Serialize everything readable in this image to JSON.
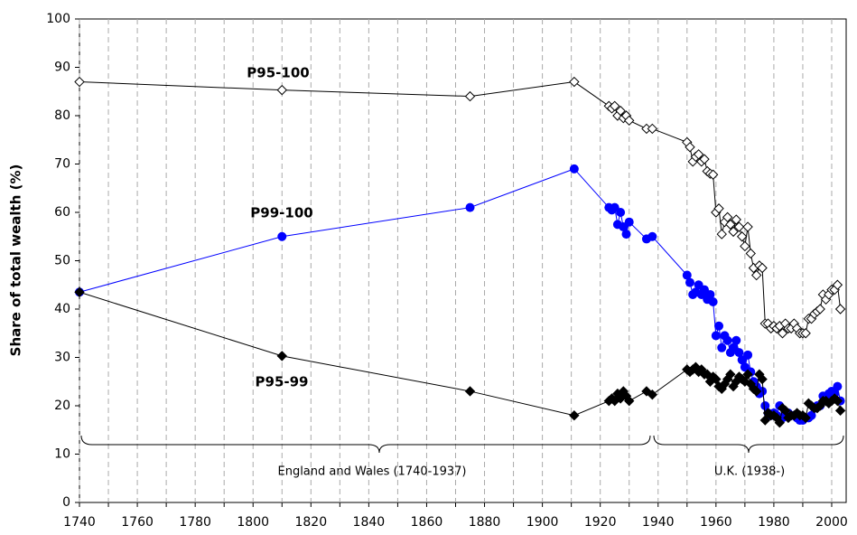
{
  "chart_data": {
    "type": "line",
    "y_label": "Share of total wealth (%)",
    "x": [
      1740,
      1810,
      1875,
      1911,
      1923,
      1924,
      1925,
      1926,
      1927,
      1928,
      1929,
      1930,
      1936,
      1938,
      1950,
      1951,
      1952,
      1953,
      1954,
      1955,
      1956,
      1957,
      1958,
      1959,
      1960,
      1961,
      1962,
      1963,
      1964,
      1965,
      1966,
      1967,
      1968,
      1969,
      1970,
      1971,
      1972,
      1973,
      1974,
      1975,
      1976,
      1977,
      1978,
      1979,
      1980,
      1981,
      1982,
      1983,
      1984,
      1985,
      1986,
      1987,
      1988,
      1989,
      1990,
      1991,
      1992,
      1993,
      1994,
      1995,
      1996,
      1997,
      1998,
      1999,
      2000,
      2001,
      2002,
      2003
    ],
    "series": [
      {
        "name": "P95-100",
        "color": "#000000",
        "marker": "open-diamond",
        "values": [
          87,
          85.3,
          84,
          87,
          82,
          81.5,
          82,
          80,
          81,
          79.5,
          80,
          79,
          77.3,
          77.3,
          74.5,
          73.5,
          70.5,
          71.5,
          72,
          70.5,
          71,
          68.5,
          68,
          67.8,
          60,
          60.8,
          55.5,
          58,
          59,
          57.5,
          56,
          58.5,
          57,
          55,
          53,
          57,
          51.5,
          48.5,
          47,
          49,
          48.5,
          37,
          37,
          36,
          36.5,
          36,
          36.5,
          35,
          37,
          36,
          36,
          37,
          36,
          35,
          35,
          35,
          38,
          38,
          39,
          39.5,
          40,
          43,
          42,
          43,
          44,
          44,
          45,
          40
        ]
      },
      {
        "name": "P99-100",
        "color": "#0000ff",
        "marker": "circle",
        "values": [
          43.5,
          55,
          61,
          69,
          61,
          60.5,
          61,
          57.5,
          60,
          57,
          55.5,
          58,
          54.5,
          55,
          47,
          45.5,
          43,
          43.5,
          45,
          43,
          44,
          42,
          43,
          41.5,
          34.5,
          36.5,
          32,
          34.5,
          33.5,
          31,
          32,
          33.5,
          31,
          29.5,
          28,
          30.5,
          27,
          25,
          24,
          22.5,
          23,
          20,
          18.5,
          18,
          18.5,
          18,
          20,
          17.5,
          18,
          18.5,
          18,
          18,
          17.5,
          17,
          17,
          17.5,
          17.5,
          18,
          19.5,
          20,
          20,
          22,
          21,
          22.5,
          23,
          22.5,
          24,
          21
        ]
      },
      {
        "name": "P95-99",
        "color": "#000000",
        "marker": "filled-diamond",
        "values": [
          43.5,
          30.3,
          23,
          18,
          21,
          21.5,
          21,
          22.5,
          21.5,
          23,
          22,
          21,
          23,
          22.3,
          27.5,
          27,
          27.5,
          28,
          27,
          27.5,
          26.5,
          26.5,
          25,
          26,
          25.5,
          24,
          23.5,
          24.5,
          25.5,
          26.5,
          24,
          25,
          26,
          25.5,
          25,
          26.5,
          24.5,
          23.5,
          23,
          26.5,
          25.5,
          17,
          18.5,
          18,
          18,
          17.5,
          16.5,
          19.5,
          19,
          17.5,
          18,
          18,
          18.5,
          18,
          18,
          17.5,
          20.5,
          20,
          19.5,
          19.5,
          20,
          21,
          21,
          20.5,
          21,
          21.5,
          21,
          19
        ]
      }
    ],
    "annotations": [
      "England and Wales (1740-1937)",
      "U.K. (1938-)"
    ],
    "xlim": [
      1740,
      2005
    ],
    "xticks": [
      1740,
      1760,
      1780,
      1800,
      1820,
      1840,
      1860,
      1880,
      1900,
      1920,
      1940,
      1960,
      1980,
      2000
    ],
    "x_minor_ticks": [
      1750,
      1770,
      1790,
      1810,
      1830,
      1850,
      1870,
      1890,
      1910,
      1930,
      1950,
      1970,
      1990
    ],
    "ylim": [
      0,
      100
    ],
    "yticks": [
      0,
      10,
      20,
      30,
      40,
      50,
      60,
      70,
      80,
      90,
      100
    ],
    "grid": "x-dashed"
  }
}
